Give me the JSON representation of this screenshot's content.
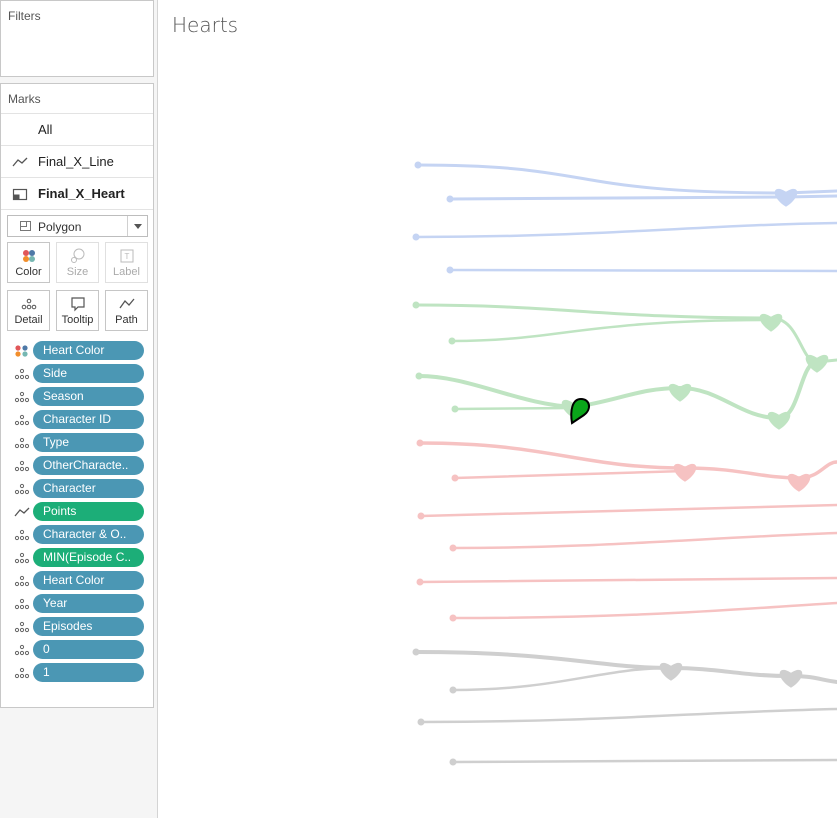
{
  "filters": {
    "title": "Filters"
  },
  "marks": {
    "title": "Marks",
    "rows": [
      {
        "label": "All"
      },
      {
        "label": "Final_X_Line",
        "icon": "line-chart-icon"
      },
      {
        "label": "Final_X_Heart",
        "icon": "polygon-mark-icon"
      }
    ],
    "mark_type": {
      "selected": "Polygon"
    },
    "tiles": [
      {
        "label": "Color",
        "icon": "color-dots-icon"
      },
      {
        "label": "Size",
        "icon": "size-icon"
      },
      {
        "label": "Label",
        "icon": "label-icon"
      },
      {
        "label": "Detail",
        "icon": "detail-dots-icon"
      },
      {
        "label": "Tooltip",
        "icon": "tooltip-icon"
      },
      {
        "label": "Path",
        "icon": "path-icon"
      }
    ],
    "pills": [
      {
        "label": "Heart Color",
        "icon": "color-dots-icon",
        "color": "#4b97b4"
      },
      {
        "label": "Side",
        "icon": "detail-dots-icon",
        "color": "#4b97b4"
      },
      {
        "label": "Season",
        "icon": "detail-dots-icon",
        "color": "#4b97b4"
      },
      {
        "label": "Character ID",
        "icon": "detail-dots-icon",
        "color": "#4b97b4"
      },
      {
        "label": "Type",
        "icon": "detail-dots-icon",
        "color": "#4b97b4"
      },
      {
        "label": "OtherCharacte..",
        "icon": "detail-dots-icon",
        "color": "#4b97b4"
      },
      {
        "label": "Character",
        "icon": "detail-dots-icon",
        "color": "#4b97b4"
      },
      {
        "label": "Points",
        "icon": "path-icon",
        "color": "#1cae78"
      },
      {
        "label": "Character & O..",
        "icon": "detail-dots-icon",
        "color": "#4b97b4"
      },
      {
        "label": "MIN(Episode C..",
        "icon": "detail-dots-icon",
        "color": "#1cae78"
      },
      {
        "label": "Heart Color",
        "icon": "detail-dots-icon",
        "color": "#4b97b4"
      },
      {
        "label": "Year",
        "icon": "detail-dots-icon",
        "color": "#4b97b4"
      },
      {
        "label": "Episodes",
        "icon": "detail-dots-icon",
        "color": "#4b97b4"
      },
      {
        "label": "0",
        "icon": "detail-dots-icon",
        "color": "#4b97b4"
      },
      {
        "label": "1",
        "icon": "detail-dots-icon",
        "color": "#4b97b4"
      }
    ]
  },
  "sheet": {
    "title": "Hearts"
  },
  "viz": {
    "colors": {
      "blue": "#c5d4f3",
      "green": "#bfe4c2",
      "red": "#f6c2c2",
      "grey": "#cfcfcf",
      "marker": "#0aa51a"
    }
  }
}
